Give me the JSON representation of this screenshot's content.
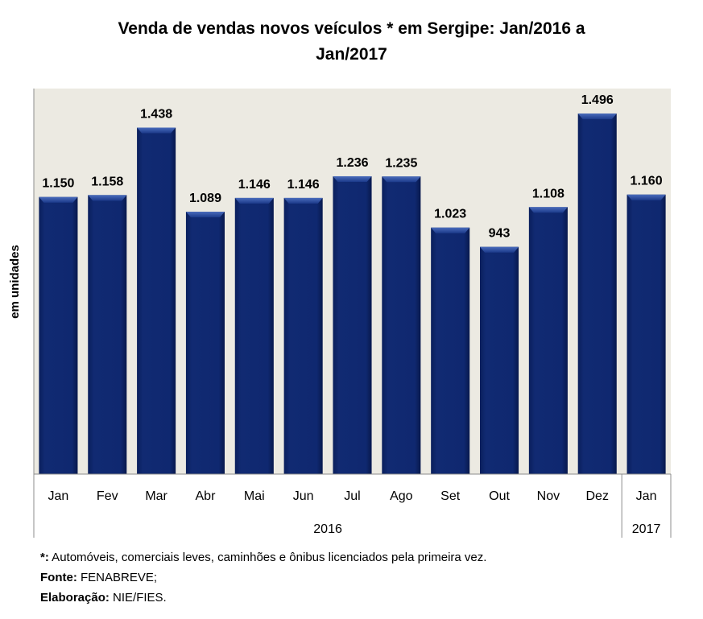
{
  "chart_data": {
    "type": "bar",
    "title": "Venda de vendas novos veículos * em Sergipe: Jan/2016 a Jan/2017",
    "title_lines": [
      "Venda de vendas novos veículos * em Sergipe: Jan/2016 a",
      "Jan/2017"
    ],
    "xlabel": "",
    "ylabel": "em unidades",
    "categories": [
      "Jan",
      "Fev",
      "Mar",
      "Abr",
      "Mai",
      "Jun",
      "Jul",
      "Ago",
      "Set",
      "Out",
      "Nov",
      "Dez",
      "Jan"
    ],
    "groups": [
      {
        "label": "2016",
        "count": 12
      },
      {
        "label": "2017",
        "count": 1
      }
    ],
    "values": [
      1150,
      1158,
      1438,
      1089,
      1146,
      1146,
      1236,
      1235,
      1023,
      943,
      1108,
      1496,
      1160
    ],
    "data_labels": [
      "1.150",
      "1.158",
      "1.438",
      "1.089",
      "1.146",
      "1.146",
      "1.236",
      "1.235",
      "1.023",
      "943",
      "1.108",
      "1.496",
      "1.160"
    ],
    "ylim": [
      0,
      1600
    ],
    "grid": false,
    "legend": "none",
    "colors": {
      "bar": "#0c2468",
      "bar_highlight": "#3b5fae",
      "plot_bg": "#eceae2",
      "axis": "#8c8c8c"
    }
  },
  "footnotes": {
    "note_label": "*:",
    "note_text": " Automóveis, comerciais leves, caminhões e ônibus licenciados pela primeira vez.",
    "source_label": "Fonte:",
    "source_text": " FENABREVE;",
    "elab_label": "Elaboração:",
    "elab_text": " NIE/FIES."
  }
}
